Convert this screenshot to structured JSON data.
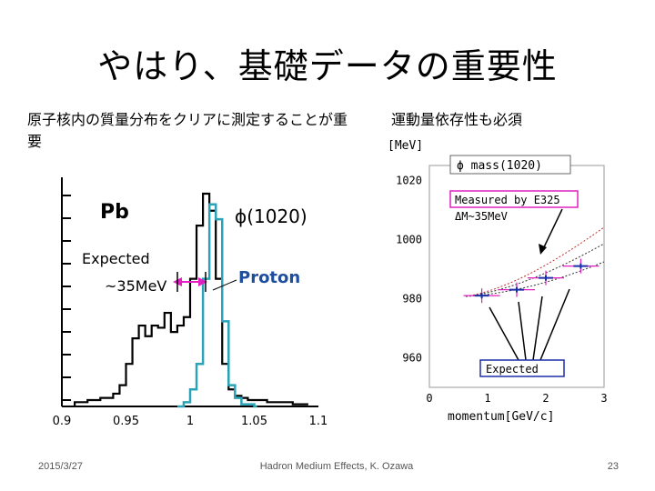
{
  "slide": {
    "title": "やはり、基礎データの重要性",
    "left_text": "原子核内の質量分布をクリアに測定することが重要",
    "right_text": "運動量依存性も必須"
  },
  "left_plot": {
    "label_pb": "Pb",
    "label_phi": "ϕ(1020)",
    "label_expected": "Expected",
    "label_shift": "~35MeV",
    "label_proton": "Proton",
    "x_ticks": [
      "0.9",
      "0.95",
      "1",
      "1.05",
      "1.1"
    ],
    "colors": {
      "pb": "#000000",
      "proton": "#2aa3b8",
      "arrow": "#e020c0",
      "proton_text": "#1f4e9e"
    },
    "chart_data": {
      "type": "histogram",
      "xlim": [
        0.9,
        1.1
      ],
      "x_tick_values": [
        0.9,
        0.95,
        1.0,
        1.05,
        1.1
      ],
      "series": [
        {
          "name": "Pb",
          "x": [
            0.91,
            0.92,
            0.93,
            0.94,
            0.945,
            0.95,
            0.955,
            0.96,
            0.965,
            0.97,
            0.975,
            0.98,
            0.985,
            0.99,
            0.995,
            1.0,
            1.005,
            1.01,
            1.015,
            1.02,
            1.025,
            1.03,
            1.035,
            1.04,
            1.045,
            1.05,
            1.06,
            1.07,
            1.08,
            1.09
          ],
          "values": [
            2,
            3,
            4,
            6,
            10,
            20,
            32,
            38,
            33,
            38,
            37,
            44,
            35,
            38,
            42,
            60,
            85,
            100,
            92,
            60,
            20,
            8,
            5,
            4,
            3,
            3,
            2,
            2,
            1,
            1
          ]
        },
        {
          "name": "Proton",
          "x": [
            0.99,
            0.995,
            1.0,
            1.005,
            1.01,
            1.015,
            1.02,
            1.025,
            1.03,
            1.035,
            1.04,
            1.05
          ],
          "values": [
            0,
            2,
            8,
            20,
            60,
            95,
            88,
            40,
            10,
            4,
            1,
            0
          ]
        }
      ]
    }
  },
  "right_plot": {
    "ylabel": "[MeV]",
    "xlabel": "momentum[GeV/c]",
    "legend_phi": "ϕ mass(1020)",
    "legend_measured": "Measured by E325",
    "legend_shift": "ΔM~35MeV",
    "legend_expected": "Expected",
    "y_ticks": [
      "1020",
      "1000",
      "980",
      "960"
    ],
    "x_ticks": [
      "0",
      "1",
      "2",
      "3"
    ],
    "colors": {
      "box_measured": "#e020c0",
      "box_expected": "#1c2fa8",
      "points": "#1c2fa8",
      "error": "#e020c0"
    },
    "chart_data": {
      "type": "scatter",
      "xlim": [
        0,
        3
      ],
      "ylim": [
        950,
        1025
      ],
      "x_tick_values": [
        0,
        1,
        2,
        3
      ],
      "y_tick_values": [
        1020,
        1000,
        980,
        960
      ],
      "points": [
        {
          "x": 0.9,
          "y": 981
        },
        {
          "x": 1.5,
          "y": 983
        },
        {
          "x": 2.0,
          "y": 987
        },
        {
          "x": 2.6,
          "y": 991
        }
      ]
    }
  },
  "footer": {
    "date": "2015/3/27",
    "center": "Hadron Medium Effects, K. Ozawa",
    "page": "23"
  }
}
